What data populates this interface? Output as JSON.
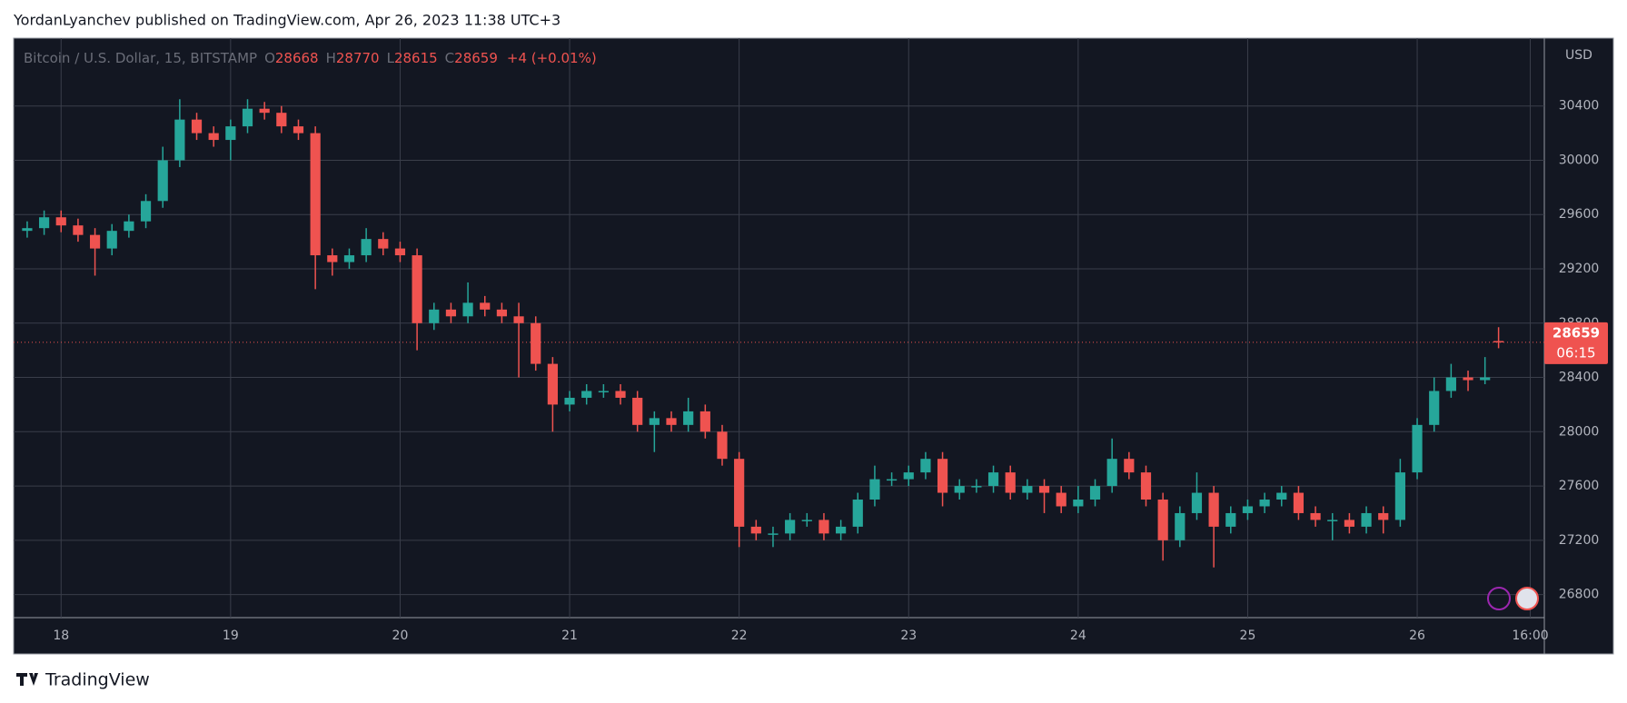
{
  "publisher_line": "YordanLyanchev published on TradingView.com, Apr 26, 2023 11:38 UTC+3",
  "brand": "TradingView",
  "chart_data": {
    "type": "candlestick",
    "title": "Bitcoin / U.S. Dollar, 15, BITSTAMP",
    "ohlc_labels": [
      "O",
      "H",
      "L",
      "C"
    ],
    "change_label": "+4 (+0.01%)",
    "axis_unit": "USD",
    "countdown": "06:15",
    "up_color": "#26a69a",
    "down_color": "#ef5350",
    "grid": true,
    "x": [
      17.8,
      17.9,
      18.0,
      18.1,
      18.2,
      18.3,
      18.4,
      18.5,
      18.6,
      18.7,
      18.8,
      18.9,
      19.0,
      19.1,
      19.2,
      19.3,
      19.4,
      19.5,
      19.6,
      19.7,
      19.8,
      19.9,
      20.0,
      20.1,
      20.2,
      20.3,
      20.4,
      20.5,
      20.6,
      20.7,
      20.8,
      20.9,
      21.0,
      21.1,
      21.2,
      21.3,
      21.4,
      21.5,
      21.6,
      21.7,
      21.8,
      21.9,
      22.0,
      22.1,
      22.2,
      22.3,
      22.4,
      22.5,
      22.6,
      22.7,
      22.8,
      22.9,
      23.0,
      23.1,
      23.2,
      23.3,
      23.4,
      23.5,
      23.6,
      23.7,
      23.8,
      23.9,
      24.0,
      24.1,
      24.2,
      24.3,
      24.4,
      24.5,
      24.6,
      24.7,
      24.8,
      24.9,
      25.0,
      25.1,
      25.2,
      25.3,
      25.4,
      25.5,
      25.6,
      25.7,
      25.8,
      25.9,
      26.0,
      26.1,
      26.2,
      26.3,
      26.4,
      26.48
    ],
    "open": [
      29480,
      29500,
      29580,
      29520,
      29450,
      29350,
      29480,
      29550,
      29700,
      30000,
      30300,
      30200,
      30150,
      30250,
      30380,
      30350,
      30250,
      30200,
      29300,
      29250,
      29300,
      29420,
      29350,
      29300,
      28800,
      28900,
      28850,
      28950,
      28900,
      28850,
      28800,
      28500,
      28200,
      28250,
      28300,
      28300,
      28250,
      28050,
      28100,
      28050,
      28150,
      28000,
      27800,
      27300,
      27250,
      27250,
      27350,
      27350,
      27250,
      27300,
      27500,
      27650,
      27650,
      27700,
      27800,
      27550,
      27600,
      27600,
      27700,
      27550,
      27600,
      27550,
      27450,
      27500,
      27600,
      27800,
      27700,
      27500,
      27200,
      27400,
      27550,
      27300,
      27400,
      27450,
      27500,
      27550,
      27400,
      27350,
      27350,
      27300,
      27400,
      27350,
      27700,
      28050,
      28300,
      28400,
      28380,
      28668
    ],
    "high": [
      29550,
      29630,
      29630,
      29570,
      29500,
      29530,
      29600,
      29750,
      30100,
      30450,
      30350,
      30250,
      30300,
      30450,
      30430,
      30400,
      30300,
      30250,
      29350,
      29350,
      29500,
      29470,
      29400,
      29350,
      28950,
      28950,
      29100,
      29000,
      28950,
      28950,
      28850,
      28550,
      28300,
      28350,
      28350,
      28350,
      28300,
      28150,
      28150,
      28250,
      28200,
      28050,
      27850,
      27350,
      27300,
      27400,
      27400,
      27400,
      27350,
      27550,
      27750,
      27700,
      27750,
      27850,
      27850,
      27650,
      27650,
      27750,
      27750,
      27650,
      27650,
      27600,
      27600,
      27650,
      27950,
      27850,
      27750,
      27550,
      27450,
      27700,
      27600,
      27450,
      27500,
      27550,
      27600,
      27600,
      27450,
      27400,
      27400,
      27450,
      27450,
      27800,
      28100,
      28400,
      28500,
      28450,
      28550,
      28770
    ],
    "low": [
      29430,
      29450,
      29470,
      29400,
      29150,
      29300,
      29430,
      29500,
      29650,
      29950,
      30150,
      30100,
      30000,
      30200,
      30300,
      30200,
      30150,
      29050,
      29150,
      29200,
      29250,
      29300,
      29250,
      28600,
      28750,
      28800,
      28800,
      28850,
      28800,
      28400,
      28450,
      28000,
      28150,
      28200,
      28250,
      28200,
      28000,
      27850,
      28000,
      28000,
      27950,
      27750,
      27150,
      27200,
      27150,
      27200,
      27300,
      27200,
      27200,
      27250,
      27450,
      27600,
      27600,
      27650,
      27450,
      27500,
      27550,
      27550,
      27500,
      27500,
      27400,
      27400,
      27400,
      27450,
      27550,
      27650,
      27450,
      27050,
      27150,
      27350,
      27000,
      27250,
      27350,
      27400,
      27450,
      27350,
      27300,
      27200,
      27250,
      27250,
      27250,
      27300,
      27650,
      28000,
      28250,
      28300,
      28350,
      28615
    ],
    "close": [
      29500,
      29580,
      29520,
      29450,
      29350,
      29480,
      29550,
      29700,
      30000,
      30300,
      30200,
      30150,
      30250,
      30380,
      30350,
      30250,
      30200,
      29300,
      29250,
      29300,
      29420,
      29350,
      29300,
      28800,
      28900,
      28850,
      28950,
      28900,
      28850,
      28800,
      28500,
      28200,
      28250,
      28300,
      28300,
      28250,
      28050,
      28100,
      28050,
      28150,
      28000,
      27800,
      27300,
      27250,
      27250,
      27350,
      27350,
      27250,
      27300,
      27500,
      27650,
      27650,
      27700,
      27800,
      27550,
      27600,
      27600,
      27700,
      27550,
      27600,
      27550,
      27450,
      27500,
      27600,
      27800,
      27700,
      27500,
      27200,
      27400,
      27550,
      27300,
      27400,
      27450,
      27500,
      27550,
      27400,
      27350,
      27350,
      27300,
      27400,
      27350,
      27700,
      28050,
      28300,
      28400,
      28380,
      28400,
      28659
    ],
    "xlim": [
      17.72,
      26.75
    ],
    "xticks": [
      18,
      19,
      20,
      21,
      22,
      23,
      24,
      25,
      26,
      {
        "value": 26.667,
        "label": "16:00"
      }
    ],
    "ylim": [
      26630,
      30900
    ],
    "yticks": [
      26800,
      27200,
      27600,
      28000,
      28400,
      28800,
      29200,
      29600,
      30000,
      30400
    ]
  }
}
